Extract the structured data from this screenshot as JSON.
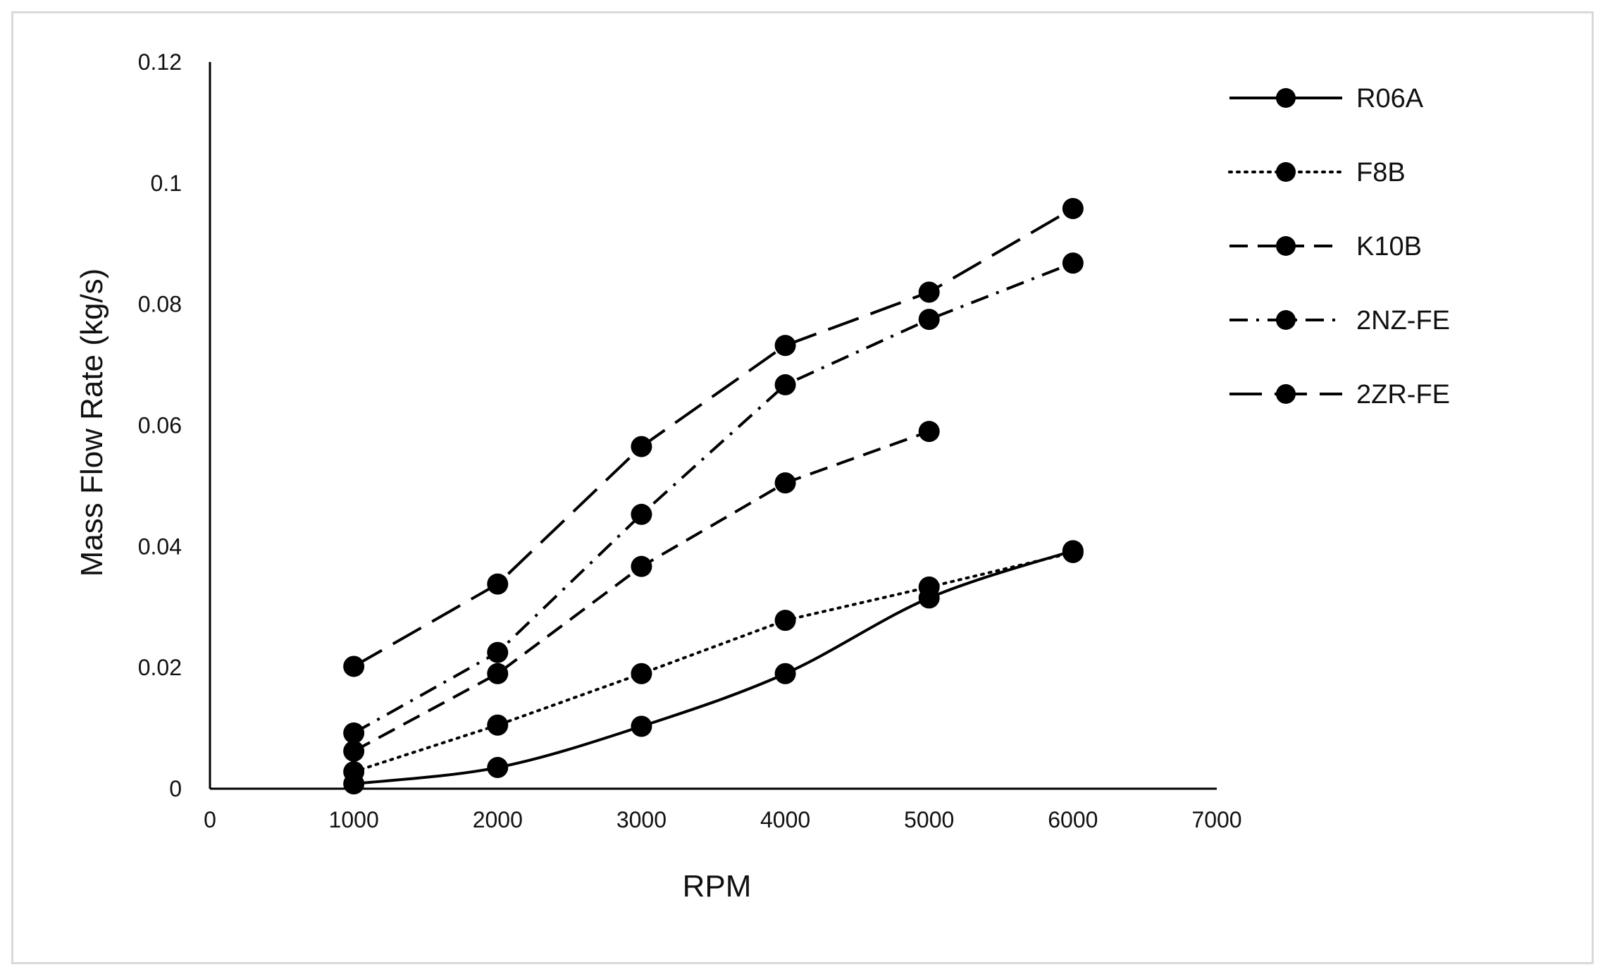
{
  "chart_data": {
    "type": "line",
    "title": "",
    "xlabel": "RPM",
    "ylabel": "Mass Flow Rate (kg/s)",
    "xlim": [
      0,
      7000
    ],
    "ylim": [
      0,
      0.12
    ],
    "x_ticks": [
      0,
      1000,
      2000,
      3000,
      4000,
      5000,
      6000,
      7000
    ],
    "x_tick_labels": [
      "0",
      "1000",
      "2000",
      "3000",
      "4000",
      "5000",
      "6000",
      "7000"
    ],
    "y_ticks": [
      0,
      0.02,
      0.04,
      0.06,
      0.08,
      0.1,
      0.12
    ],
    "y_tick_labels": [
      "0",
      "0.02",
      "0.04",
      "0.06",
      "0.08",
      "0.1",
      "0.12"
    ],
    "grid": false,
    "legend_position": "right",
    "line_color": "#000000",
    "series": [
      {
        "name": "R06A",
        "style": "solid",
        "smooth": true,
        "x": [
          1000,
          2000,
          3000,
          4000,
          5000,
          6000
        ],
        "values": [
          0.0008,
          0.0035,
          0.0103,
          0.019,
          0.0315,
          0.0393
        ]
      },
      {
        "name": "F8B",
        "style": "dotted",
        "smooth": false,
        "x": [
          1000,
          2000,
          3000,
          4000,
          5000,
          6000
        ],
        "values": [
          0.0028,
          0.0105,
          0.019,
          0.0278,
          0.0333,
          0.039
        ]
      },
      {
        "name": "K10B",
        "style": "dashed",
        "smooth": false,
        "x": [
          1000,
          2000,
          3000,
          4000,
          5000
        ],
        "values": [
          0.0062,
          0.019,
          0.0367,
          0.0505,
          0.059
        ]
      },
      {
        "name": "2NZ-FE",
        "style": "dashdot",
        "smooth": false,
        "x": [
          1000,
          2000,
          3000,
          4000,
          5000,
          6000
        ],
        "values": [
          0.0092,
          0.0225,
          0.0453,
          0.0667,
          0.0775,
          0.0868
        ]
      },
      {
        "name": "2ZR-FE",
        "style": "longdash",
        "smooth": false,
        "x": [
          1000,
          2000,
          3000,
          4000,
          5000,
          6000
        ],
        "values": [
          0.0202,
          0.0338,
          0.0565,
          0.0732,
          0.082,
          0.0958
        ]
      }
    ]
  }
}
